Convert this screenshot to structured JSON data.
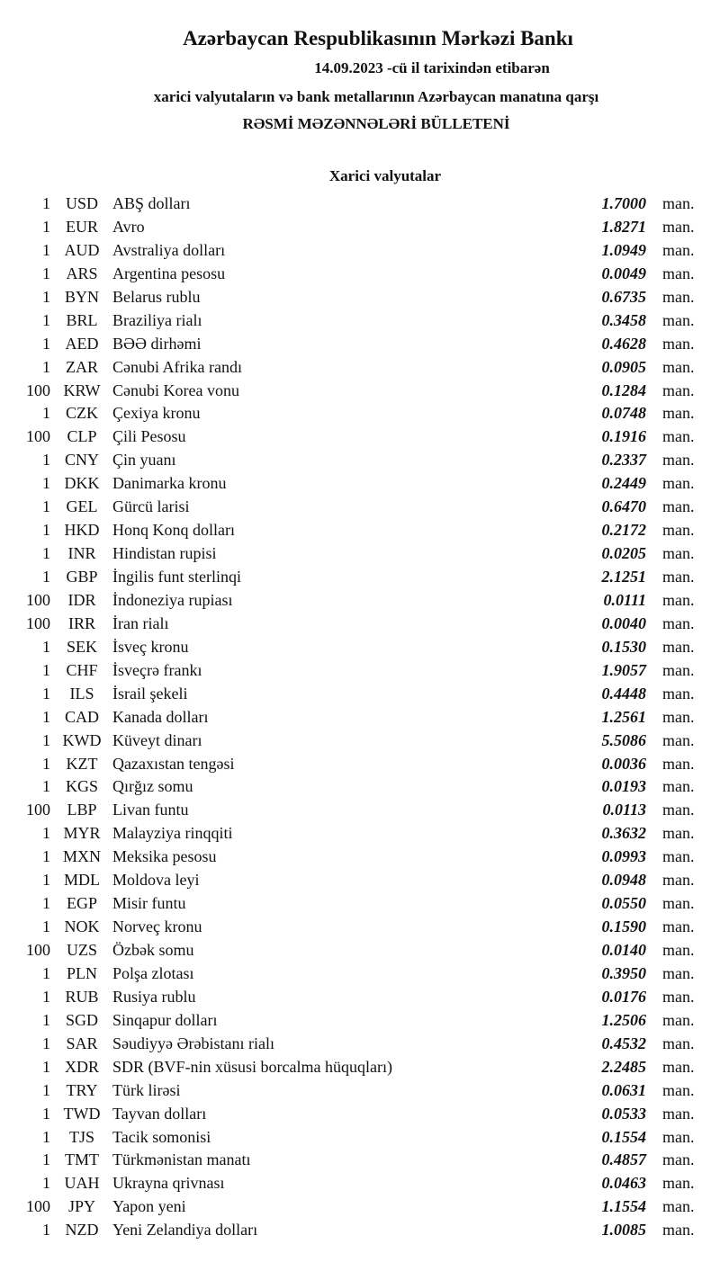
{
  "header": {
    "title": "Azərbaycan Respublikasının Mərkəzi Bankı",
    "date_line": "14.09.2023 -cü il tarixindən etibarən",
    "subtitle": "xarici valyutaların və bank metallarının Azərbaycan manatına qarşı",
    "bulletin": "RƏSMİ MƏZƏNNƏLƏRİ BÜLLETENİ"
  },
  "section_title": "Xarici valyutalar",
  "unit": "man.",
  "rates": [
    {
      "nominal": "1",
      "code": "USD",
      "name": "ABŞ dolları",
      "rate": "1.7000"
    },
    {
      "nominal": "1",
      "code": "EUR",
      "name": "Avro",
      "rate": "1.8271"
    },
    {
      "nominal": "1",
      "code": "AUD",
      "name": "Avstraliya dolları",
      "rate": "1.0949"
    },
    {
      "nominal": "1",
      "code": "ARS",
      "name": "Argentina pesosu",
      "rate": "0.0049"
    },
    {
      "nominal": "1",
      "code": "BYN",
      "name": "Belarus rublu",
      "rate": "0.6735"
    },
    {
      "nominal": "1",
      "code": "BRL",
      "name": "Braziliya rialı",
      "rate": "0.3458"
    },
    {
      "nominal": "1",
      "code": "AED",
      "name": "BƏƏ dirhəmi",
      "rate": "0.4628"
    },
    {
      "nominal": "1",
      "code": "ZAR",
      "name": "Cənubi Afrika randı",
      "rate": "0.0905"
    },
    {
      "nominal": "100",
      "code": "KRW",
      "name": "Cənubi Korea vonu",
      "rate": "0.1284"
    },
    {
      "nominal": "1",
      "code": "CZK",
      "name": "Çexiya kronu",
      "rate": "0.0748"
    },
    {
      "nominal": "100",
      "code": "CLP",
      "name": "Çili Pesosu",
      "rate": "0.1916"
    },
    {
      "nominal": "1",
      "code": "CNY",
      "name": "Çin yuanı",
      "rate": "0.2337"
    },
    {
      "nominal": "1",
      "code": "DKK",
      "name": "Danimarka kronu",
      "rate": "0.2449"
    },
    {
      "nominal": "1",
      "code": "GEL",
      "name": "Gürcü larisi",
      "rate": "0.6470"
    },
    {
      "nominal": "1",
      "code": "HKD",
      "name": "Honq Konq dolları",
      "rate": "0.2172"
    },
    {
      "nominal": "1",
      "code": "INR",
      "name": "Hindistan rupisi",
      "rate": "0.0205"
    },
    {
      "nominal": "1",
      "code": "GBP",
      "name": "İngilis funt sterlinqi",
      "rate": "2.1251"
    },
    {
      "nominal": "100",
      "code": "IDR",
      "name": "İndoneziya rupiası",
      "rate": "0.0111"
    },
    {
      "nominal": "100",
      "code": "IRR",
      "name": "İran rialı",
      "rate": "0.0040"
    },
    {
      "nominal": "1",
      "code": "SEK",
      "name": "İsveç kronu",
      "rate": "0.1530"
    },
    {
      "nominal": "1",
      "code": "CHF",
      "name": "İsveçrə frankı",
      "rate": "1.9057"
    },
    {
      "nominal": "1",
      "code": "ILS",
      "name": "İsrail şekeli",
      "rate": "0.4448"
    },
    {
      "nominal": "1",
      "code": "CAD",
      "name": "Kanada dolları",
      "rate": "1.2561"
    },
    {
      "nominal": "1",
      "code": "KWD",
      "name": "Küveyt dinarı",
      "rate": "5.5086"
    },
    {
      "nominal": "1",
      "code": "KZT",
      "name": "Qazaxıstan tengəsi",
      "rate": "0.0036"
    },
    {
      "nominal": "1",
      "code": "KGS",
      "name": "Qırğız somu",
      "rate": "0.0193"
    },
    {
      "nominal": "100",
      "code": "LBP",
      "name": "Livan funtu",
      "rate": "0.0113"
    },
    {
      "nominal": "1",
      "code": "MYR",
      "name": "Malayziya rinqqiti",
      "rate": "0.3632"
    },
    {
      "nominal": "1",
      "code": "MXN",
      "name": "Meksika pesosu",
      "rate": "0.0993"
    },
    {
      "nominal": "1",
      "code": "MDL",
      "name": "Moldova leyi",
      "rate": "0.0948"
    },
    {
      "nominal": "1",
      "code": "EGP",
      "name": "Misir funtu",
      "rate": "0.0550"
    },
    {
      "nominal": "1",
      "code": "NOK",
      "name": "Norveç kronu",
      "rate": "0.1590"
    },
    {
      "nominal": "100",
      "code": "UZS",
      "name": "Özbək somu",
      "rate": "0.0140"
    },
    {
      "nominal": "1",
      "code": "PLN",
      "name": "Polşa zlotası",
      "rate": "0.3950"
    },
    {
      "nominal": "1",
      "code": "RUB",
      "name": "Rusiya rublu",
      "rate": "0.0176"
    },
    {
      "nominal": "1",
      "code": "SGD",
      "name": "Sinqapur dolları",
      "rate": "1.2506"
    },
    {
      "nominal": "1",
      "code": "SAR",
      "name": "Səudiyyə Ərəbistanı rialı",
      "rate": "0.4532"
    },
    {
      "nominal": "1",
      "code": "XDR",
      "name": "SDR (BVF-nin xüsusi borcalma hüquqları)",
      "rate": "2.2485"
    },
    {
      "nominal": "1",
      "code": "TRY",
      "name": "Türk lirəsi",
      "rate": "0.0631"
    },
    {
      "nominal": "1",
      "code": "TWD",
      "name": "Tayvan dolları",
      "rate": "0.0533"
    },
    {
      "nominal": "1",
      "code": "TJS",
      "name": "Tacik somonisi",
      "rate": "0.1554"
    },
    {
      "nominal": "1",
      "code": "TMT",
      "name": "Türkmənistan manatı",
      "rate": "0.4857"
    },
    {
      "nominal": "1",
      "code": "UAH",
      "name": "Ukrayna qrivnası",
      "rate": "0.0463"
    },
    {
      "nominal": "100",
      "code": "JPY",
      "name": "Yapon yeni",
      "rate": "1.1554"
    },
    {
      "nominal": "1",
      "code": "NZD",
      "name": "Yeni Zelandiya dolları",
      "rate": "1.0085"
    }
  ]
}
